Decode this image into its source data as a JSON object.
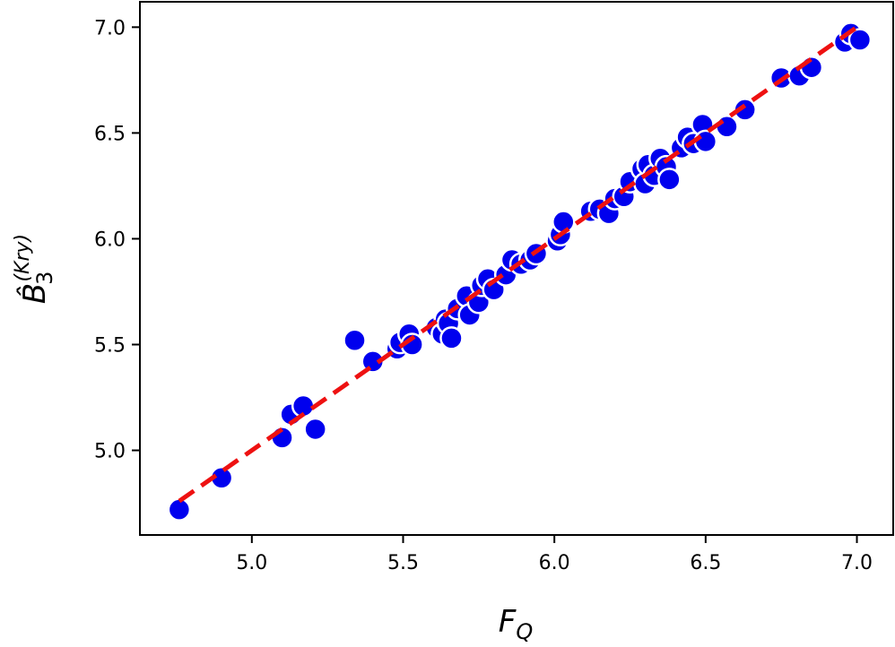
{
  "chart_data": {
    "type": "scatter",
    "title": "",
    "xlabel": "F",
    "xlabel_sub": "Q",
    "ylabel": "B̂",
    "ylabel_sub": "3",
    "ylabel_sup": "(Kry)",
    "xlim": [
      4.63,
      7.12
    ],
    "ylim": [
      4.6,
      7.12
    ],
    "x_ticks": [
      {
        "value": 5.0,
        "label": "5.0"
      },
      {
        "value": 5.5,
        "label": "5.5"
      },
      {
        "value": 6.0,
        "label": "6.0"
      },
      {
        "value": 6.5,
        "label": "6.5"
      },
      {
        "value": 7.0,
        "label": "7.0"
      }
    ],
    "y_ticks": [
      {
        "value": 5.0,
        "label": "5.0"
      },
      {
        "value": 5.5,
        "label": "5.5"
      },
      {
        "value": 6.0,
        "label": "6.0"
      },
      {
        "value": 6.5,
        "label": "6.5"
      },
      {
        "value": 7.0,
        "label": "7.0"
      }
    ],
    "grid": false,
    "marker_color": "#0000ee",
    "marker_edge_color": "#ffffff",
    "fit_line": {
      "x": [
        4.76,
        7.01
      ],
      "y": [
        4.76,
        7.01
      ],
      "color": "#ee1111",
      "style": "dashed"
    },
    "points": [
      {
        "x": 4.76,
        "y": 4.72
      },
      {
        "x": 4.9,
        "y": 4.87
      },
      {
        "x": 5.1,
        "y": 5.06
      },
      {
        "x": 5.13,
        "y": 5.17
      },
      {
        "x": 5.17,
        "y": 5.21
      },
      {
        "x": 5.21,
        "y": 5.1
      },
      {
        "x": 5.34,
        "y": 5.52
      },
      {
        "x": 5.4,
        "y": 5.42
      },
      {
        "x": 5.48,
        "y": 5.48
      },
      {
        "x": 5.49,
        "y": 5.51
      },
      {
        "x": 5.52,
        "y": 5.55
      },
      {
        "x": 5.53,
        "y": 5.5
      },
      {
        "x": 5.61,
        "y": 5.58
      },
      {
        "x": 5.63,
        "y": 5.55
      },
      {
        "x": 5.64,
        "y": 5.62
      },
      {
        "x": 5.65,
        "y": 5.6
      },
      {
        "x": 5.66,
        "y": 5.53
      },
      {
        "x": 5.68,
        "y": 5.67
      },
      {
        "x": 5.71,
        "y": 5.73
      },
      {
        "x": 5.72,
        "y": 5.64
      },
      {
        "x": 5.75,
        "y": 5.7
      },
      {
        "x": 5.76,
        "y": 5.78
      },
      {
        "x": 5.78,
        "y": 5.81
      },
      {
        "x": 5.8,
        "y": 5.76
      },
      {
        "x": 5.84,
        "y": 5.83
      },
      {
        "x": 5.86,
        "y": 5.9
      },
      {
        "x": 5.89,
        "y": 5.88
      },
      {
        "x": 5.92,
        "y": 5.9
      },
      {
        "x": 5.94,
        "y": 5.93
      },
      {
        "x": 6.01,
        "y": 5.99
      },
      {
        "x": 6.02,
        "y": 6.02
      },
      {
        "x": 6.03,
        "y": 6.08
      },
      {
        "x": 6.12,
        "y": 6.13
      },
      {
        "x": 6.15,
        "y": 6.14
      },
      {
        "x": 6.18,
        "y": 6.12
      },
      {
        "x": 6.2,
        "y": 6.19
      },
      {
        "x": 6.23,
        "y": 6.2
      },
      {
        "x": 6.25,
        "y": 6.27
      },
      {
        "x": 6.29,
        "y": 6.33
      },
      {
        "x": 6.3,
        "y": 6.26
      },
      {
        "x": 6.31,
        "y": 6.35
      },
      {
        "x": 6.33,
        "y": 6.3
      },
      {
        "x": 6.35,
        "y": 6.38
      },
      {
        "x": 6.37,
        "y": 6.34
      },
      {
        "x": 6.38,
        "y": 6.28
      },
      {
        "x": 6.42,
        "y": 6.43
      },
      {
        "x": 6.44,
        "y": 6.48
      },
      {
        "x": 6.46,
        "y": 6.45
      },
      {
        "x": 6.49,
        "y": 6.54
      },
      {
        "x": 6.5,
        "y": 6.46
      },
      {
        "x": 6.57,
        "y": 6.53
      },
      {
        "x": 6.63,
        "y": 6.61
      },
      {
        "x": 6.75,
        "y": 6.76
      },
      {
        "x": 6.81,
        "y": 6.77
      },
      {
        "x": 6.85,
        "y": 6.81
      },
      {
        "x": 6.96,
        "y": 6.93
      },
      {
        "x": 6.98,
        "y": 6.97
      },
      {
        "x": 7.01,
        "y": 6.94
      }
    ]
  }
}
